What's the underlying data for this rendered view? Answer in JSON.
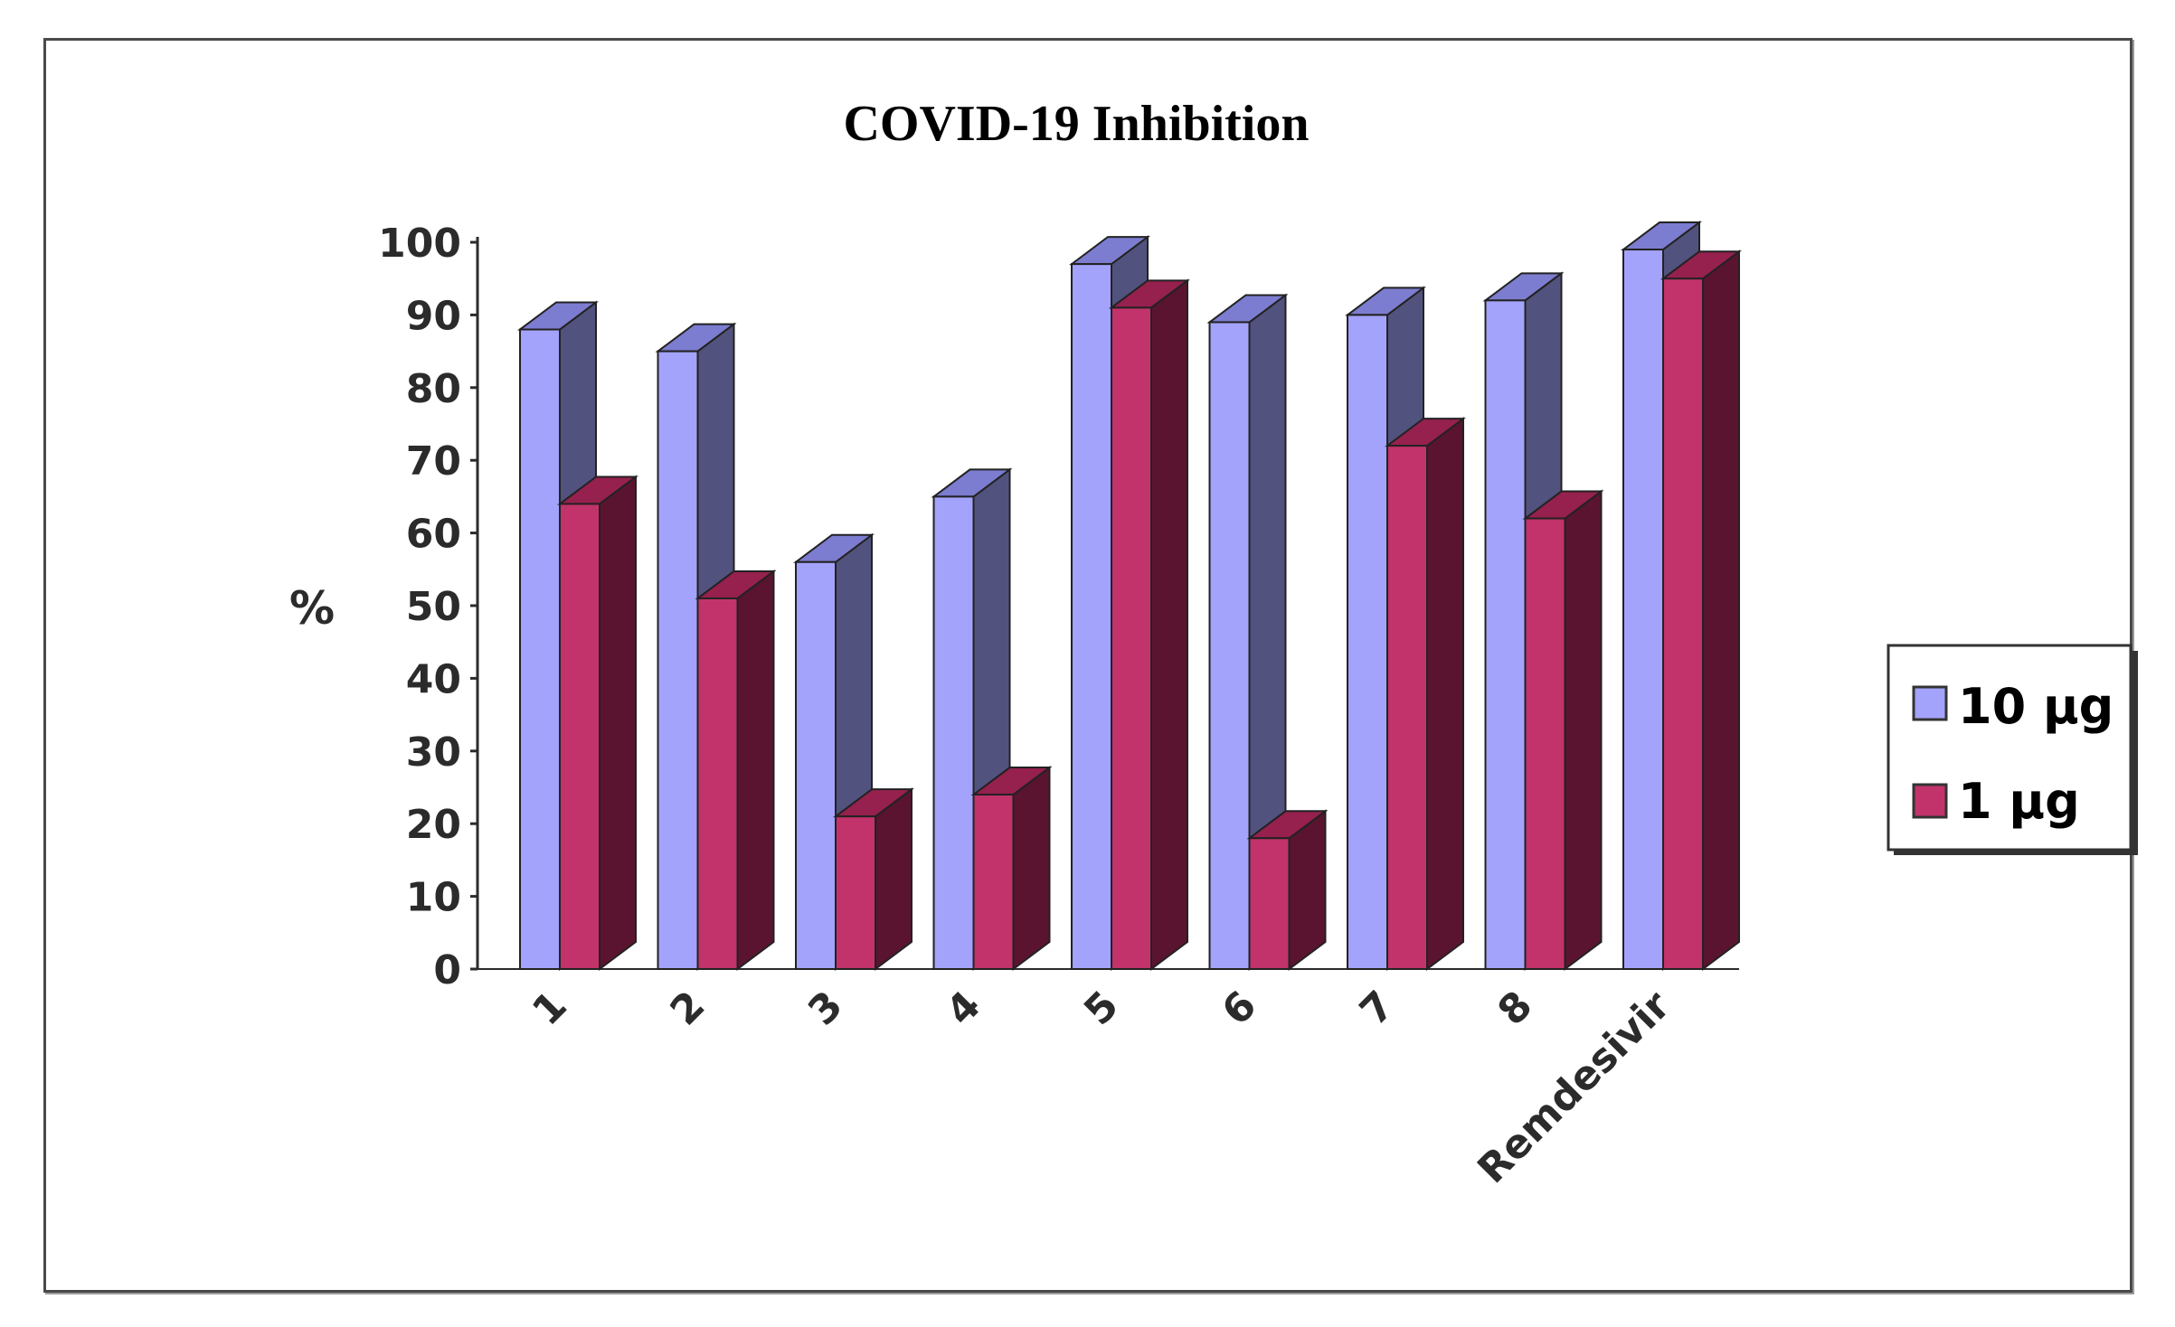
{
  "chart_data": {
    "type": "bar",
    "title": "COVID-19 Inhibition",
    "xlabel": "",
    "ylabel": "%",
    "ylim": [
      0,
      100
    ],
    "yticks": [
      0,
      10,
      20,
      30,
      40,
      50,
      60,
      70,
      80,
      90,
      100
    ],
    "categories": [
      "1",
      "2",
      "3",
      "4",
      "5",
      "6",
      "7",
      "8",
      "Remdesivir"
    ],
    "series": [
      {
        "name": "10 μg",
        "color_front": "#a3a3fb",
        "color_side": "#52527e",
        "color_top": "#7c7cd0",
        "values": [
          88,
          85,
          56,
          65,
          97,
          89,
          90,
          92,
          99
        ]
      },
      {
        "name": "1 μg",
        "color_front": "#c2336b",
        "color_side": "#5a1430",
        "color_top": "#96204e",
        "values": [
          64,
          51,
          21,
          24,
          91,
          18,
          72,
          62,
          95
        ]
      }
    ],
    "legend_position": "right",
    "grid": false,
    "style": "3d-clustered-column"
  }
}
